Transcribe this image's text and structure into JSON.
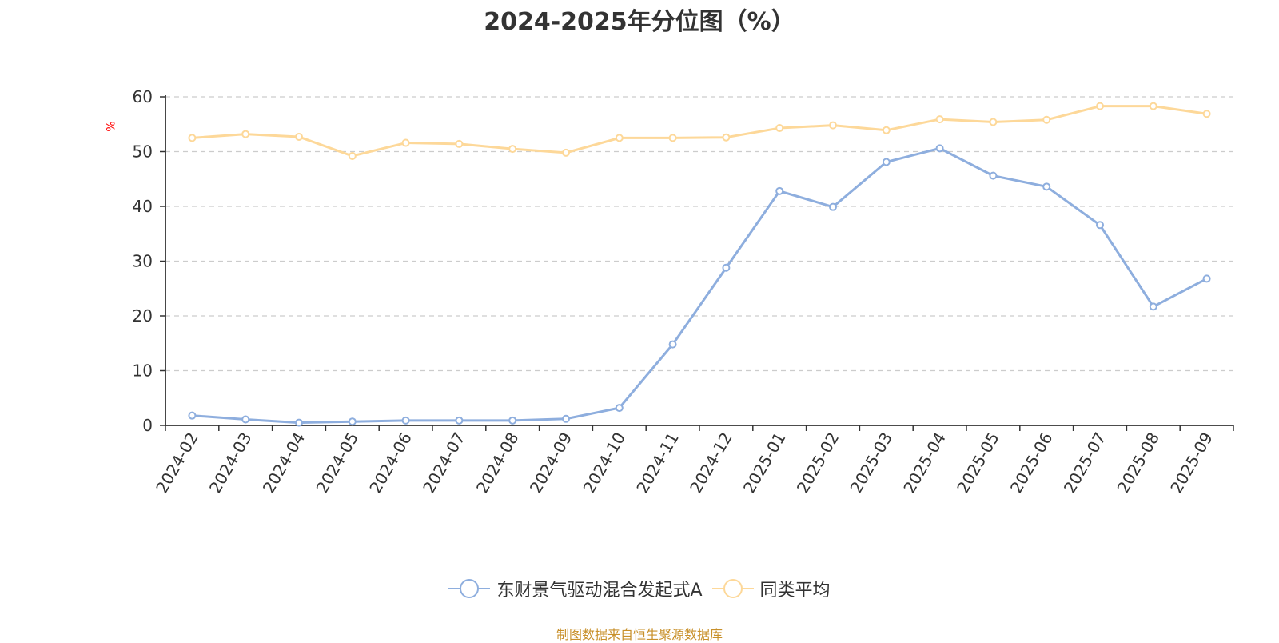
{
  "title": "2024-2025年分位图（%）",
  "y_unit": "%",
  "source": "制图数据来自恒生聚源数据库",
  "chart_data": {
    "type": "line",
    "title": "2024-2025年分位图（%）",
    "xlabel": "",
    "ylabel": "%",
    "ylim": [
      0,
      60
    ],
    "yticks": [
      0,
      10,
      20,
      30,
      40,
      50,
      60
    ],
    "grid": true,
    "legend_position": "bottom",
    "categories": [
      "2024-02",
      "2024-03",
      "2024-04",
      "2024-05",
      "2024-06",
      "2024-07",
      "2024-08",
      "2024-09",
      "2024-10",
      "2024-11",
      "2024-12",
      "2025-01",
      "2025-02",
      "2025-03",
      "2025-04",
      "2025-05",
      "2025-06",
      "2025-07",
      "2025-08",
      "2025-09"
    ],
    "series": [
      {
        "name": "东财景气驱动混合发起式A",
        "color": "#8eaede",
        "values": [
          1.8,
          1.1,
          0.5,
          0.7,
          0.9,
          0.9,
          0.9,
          1.2,
          3.2,
          14.8,
          28.8,
          42.8,
          39.9,
          48.1,
          50.6,
          45.6,
          43.6,
          36.6,
          21.7,
          26.8
        ]
      },
      {
        "name": "同类平均",
        "color": "#fdd899",
        "values": [
          52.5,
          53.2,
          52.7,
          49.2,
          51.6,
          51.4,
          50.5,
          49.8,
          52.5,
          52.5,
          52.6,
          54.3,
          54.8,
          53.9,
          55.9,
          55.4,
          55.8,
          58.3,
          58.3,
          56.9
        ]
      }
    ]
  }
}
